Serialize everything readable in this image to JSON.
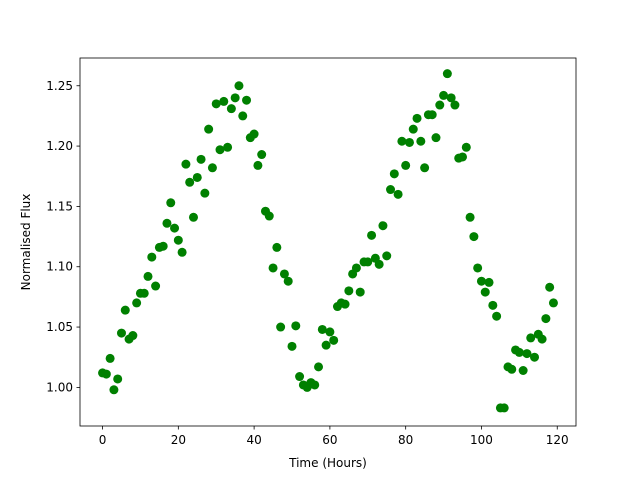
{
  "chart_data": {
    "type": "scatter",
    "xlabel": "Time (Hours)",
    "ylabel": "Normalised Flux",
    "x": [
      0,
      1,
      2,
      3,
      4,
      5,
      6,
      7,
      8,
      9,
      10,
      11,
      12,
      13,
      14,
      15,
      16,
      17,
      18,
      19,
      20,
      21,
      22,
      23,
      24,
      25,
      26,
      27,
      28,
      29,
      30,
      31,
      32,
      33,
      34,
      35,
      36,
      37,
      38,
      39,
      40,
      41,
      42,
      43,
      44,
      45,
      46,
      47,
      48,
      49,
      50,
      51,
      52,
      53,
      54,
      55,
      56,
      57,
      58,
      59,
      60,
      61,
      62,
      63,
      64,
      65,
      66,
      67,
      68,
      69,
      70,
      71,
      72,
      73,
      74,
      75,
      76,
      77,
      78,
      79,
      80,
      81,
      82,
      83,
      84,
      85,
      86,
      87,
      88,
      89,
      90,
      91,
      92,
      93,
      94,
      95,
      96,
      97,
      98,
      99,
      100,
      101,
      102,
      103,
      104,
      105,
      106,
      107,
      108,
      109,
      110,
      111,
      112,
      113,
      114,
      115,
      116,
      117,
      118,
      119
    ],
    "series": [
      {
        "color": "#008000",
        "values": [
          1.012,
          1.011,
          1.024,
          0.998,
          1.007,
          1.045,
          1.064,
          1.04,
          1.043,
          1.07,
          1.078,
          1.078,
          1.092,
          1.108,
          1.084,
          1.116,
          1.117,
          1.136,
          1.153,
          1.132,
          1.122,
          1.112,
          1.185,
          1.17,
          1.141,
          1.174,
          1.189,
          1.161,
          1.214,
          1.182,
          1.235,
          1.197,
          1.237,
          1.199,
          1.231,
          1.24,
          1.25,
          1.225,
          1.238,
          1.207,
          1.21,
          1.184,
          1.193,
          1.146,
          1.142,
          1.099,
          1.116,
          1.05,
          1.094,
          1.088,
          1.034,
          1.051,
          1.009,
          1.002,
          1.0,
          1.004,
          1.002,
          1.017,
          1.048,
          1.035,
          1.046,
          1.039,
          1.067,
          1.07,
          1.069,
          1.08,
          1.094,
          1.099,
          1.079,
          1.104,
          1.104,
          1.126,
          1.107,
          1.102,
          1.134,
          1.109,
          1.164,
          1.177,
          1.16,
          1.204,
          1.184,
          1.203,
          1.214,
          1.223,
          1.204,
          1.182,
          1.226,
          1.226,
          1.207,
          1.234,
          1.242,
          1.26,
          1.24,
          1.234,
          1.19,
          1.191,
          1.199,
          1.141,
          1.125,
          1.099,
          1.088,
          1.079,
          1.087,
          1.068,
          1.059,
          0.983,
          0.983,
          1.017,
          1.015,
          1.031,
          1.029,
          1.014,
          1.028,
          1.041,
          1.025,
          1.044,
          1.04,
          1.057,
          1.083,
          1.07
        ]
      }
    ],
    "xlim": [
      -5.95,
      124.95
    ],
    "xticks": [
      0,
      20,
      40,
      60,
      80,
      100,
      120
    ],
    "ylim": [
      0.968,
      1.273
    ],
    "yticks": [
      {
        "value": 1,
        "label": "1.00"
      },
      1.05,
      {
        "value": 1.1,
        "label": "1.10"
      },
      1.15,
      {
        "value": 1.2,
        "label": "1.20"
      },
      1.25
    ],
    "grid": false
  }
}
